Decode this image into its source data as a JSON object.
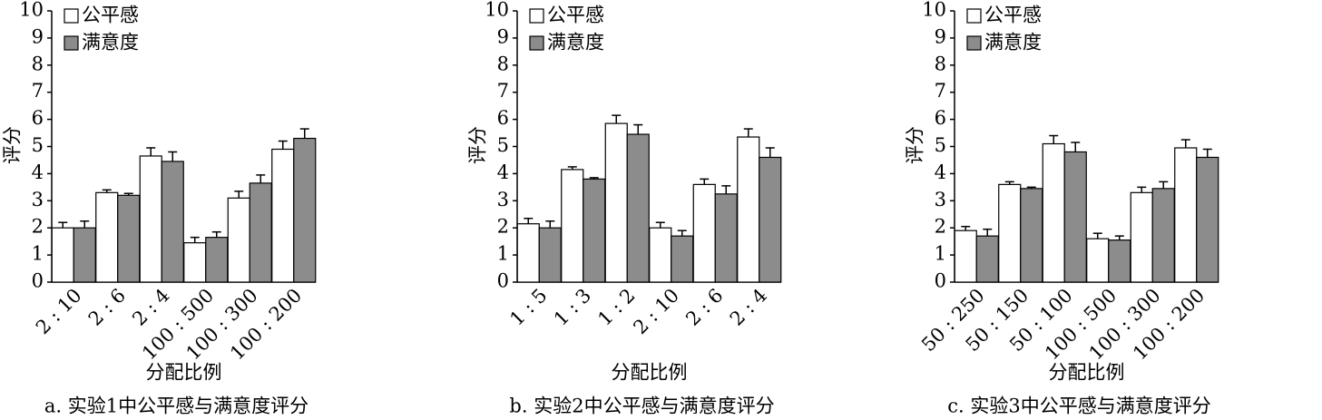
{
  "chart_data": [
    {
      "type": "bar",
      "title": "a. 实验1中公平感与满意度评分",
      "x_label": "分配比例",
      "y_label": "评分",
      "categories": [
        "2 : 10",
        "2 : 6",
        "2 : 4",
        "100 : 500",
        "100 : 300",
        "100 : 200"
      ],
      "series": [
        {
          "name": "公平感",
          "color": "#ffffff",
          "values": [
            2.0,
            3.3,
            4.65,
            1.45,
            3.1,
            4.9
          ],
          "errors": [
            0.2,
            0.1,
            0.3,
            0.2,
            0.25,
            0.3
          ]
        },
        {
          "name": "满意度",
          "color": "#8c8c8c",
          "values": [
            2.0,
            3.2,
            4.45,
            1.65,
            3.65,
            5.3
          ],
          "errors": [
            0.25,
            0.07,
            0.35,
            0.2,
            0.3,
            0.35
          ]
        }
      ],
      "ylim": [
        0,
        10
      ],
      "yticks": [
        0,
        1,
        2,
        3,
        4,
        5,
        6,
        7,
        8,
        9,
        10
      ]
    },
    {
      "type": "bar",
      "title": "b. 实验2中公平感与满意度评分",
      "x_label": "分配比例",
      "y_label": "评分",
      "categories": [
        "1 : 5",
        "1 : 3",
        "1 : 2",
        "2 : 10",
        "2 : 6",
        "2 : 4"
      ],
      "series": [
        {
          "name": "公平感",
          "color": "#ffffff",
          "values": [
            2.15,
            4.15,
            5.85,
            2.0,
            3.6,
            5.35
          ],
          "errors": [
            0.2,
            0.1,
            0.3,
            0.2,
            0.2,
            0.3
          ]
        },
        {
          "name": "满意度",
          "color": "#8c8c8c",
          "values": [
            2.0,
            3.8,
            5.45,
            1.7,
            3.25,
            4.6
          ],
          "errors": [
            0.25,
            0.05,
            0.35,
            0.2,
            0.3,
            0.35
          ]
        }
      ],
      "ylim": [
        0,
        10
      ],
      "yticks": [
        0,
        1,
        2,
        3,
        4,
        5,
        6,
        7,
        8,
        9,
        10
      ]
    },
    {
      "type": "bar",
      "title": "c. 实验3中公平感与满意度评分",
      "x_label": "分配比例",
      "y_label": "评分",
      "categories": [
        "50 : 250",
        "50 : 150",
        "50 : 100",
        "100 : 500",
        "100 : 300",
        "100 : 200"
      ],
      "series": [
        {
          "name": "公平感",
          "color": "#ffffff",
          "values": [
            1.9,
            3.6,
            5.1,
            1.6,
            3.3,
            4.95
          ],
          "errors": [
            0.15,
            0.1,
            0.3,
            0.2,
            0.2,
            0.3
          ]
        },
        {
          "name": "满意度",
          "color": "#8c8c8c",
          "values": [
            1.7,
            3.45,
            4.8,
            1.55,
            3.45,
            4.6
          ],
          "errors": [
            0.25,
            0.05,
            0.35,
            0.15,
            0.25,
            0.3
          ]
        }
      ],
      "ylim": [
        0,
        10
      ],
      "yticks": [
        0,
        1,
        2,
        3,
        4,
        5,
        6,
        7,
        8,
        9,
        10
      ]
    }
  ]
}
